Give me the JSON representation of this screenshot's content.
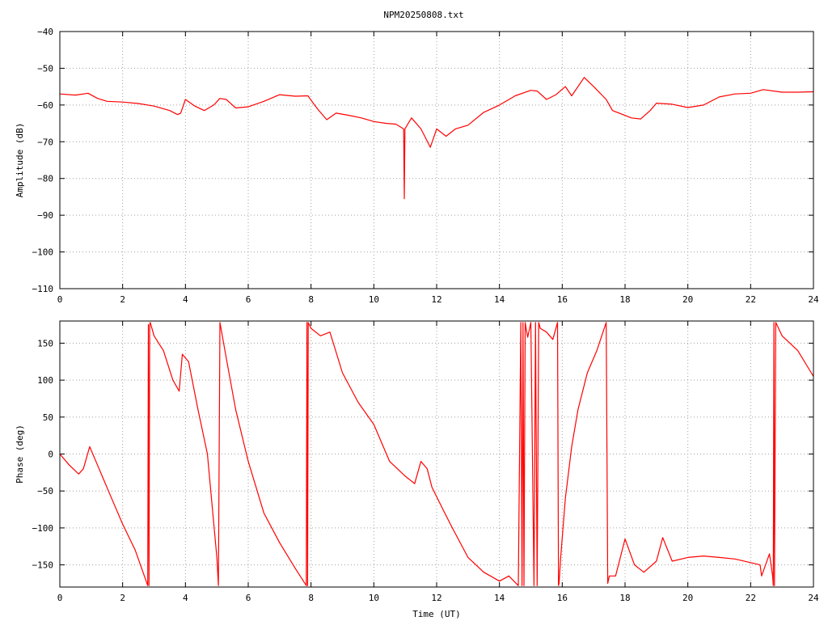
{
  "title": "NPM20250808.txt",
  "colors": {
    "series": "#ff0000",
    "grid": "#a0a0a0",
    "axes": "#000000",
    "background": "#ffffff"
  },
  "chart_data": [
    {
      "type": "line",
      "title": "NPM20250808.txt",
      "xlabel": "",
      "ylabel": "Amplitude (dB)",
      "xlim": [
        0,
        24
      ],
      "ylim": [
        -110,
        -40
      ],
      "xticks": [
        0,
        2,
        4,
        6,
        8,
        10,
        12,
        14,
        16,
        18,
        20,
        22,
        24
      ],
      "xtick_labels": [
        "0",
        "2",
        "4",
        "6",
        "8",
        "10",
        "12",
        "14",
        "16",
        "18",
        "20",
        "22",
        "24"
      ],
      "yticks": [
        -40,
        -50,
        -60,
        -70,
        -80,
        -90,
        -100,
        -110
      ],
      "ytick_labels": [
        "−40",
        "−50",
        "−60",
        "−70",
        "−80",
        "−90",
        "−100",
        "−110"
      ],
      "grid": true,
      "series": [
        {
          "color": "#ff0000",
          "x": [
            0,
            0.5,
            0.9,
            1.2,
            1.5,
            2.0,
            2.5,
            3.0,
            3.5,
            3.75,
            3.85,
            4.0,
            4.3,
            4.6,
            4.9,
            5.1,
            5.3,
            5.6,
            6.0,
            6.5,
            7.0,
            7.5,
            7.9,
            8.2,
            8.5,
            8.8,
            9.2,
            9.6,
            10.0,
            10.4,
            10.7,
            10.95,
            10.97,
            10.99,
            11.2,
            11.5,
            11.8,
            12.0,
            12.3,
            12.6,
            13.0,
            13.5,
            14.0,
            14.5,
            15.0,
            15.2,
            15.5,
            15.8,
            16.1,
            16.3,
            16.7,
            17.0,
            17.4,
            17.6,
            17.9,
            18.2,
            18.5,
            18.8,
            19.0,
            19.5,
            20.0,
            20.5,
            21.0,
            21.5,
            22.0,
            22.4,
            23.0,
            23.5,
            24.0
          ],
          "y": [
            -57,
            -57.3,
            -56.8,
            -58.2,
            -59,
            -59.2,
            -59.6,
            -60.3,
            -61.5,
            -62.6,
            -62.2,
            -58.5,
            -60.3,
            -61.5,
            -60,
            -58.2,
            -58.5,
            -60.8,
            -60.5,
            -59,
            -57.2,
            -57.6,
            -57.5,
            -61,
            -64,
            -62.2,
            -62.8,
            -63.5,
            -64.5,
            -65,
            -65.2,
            -66.5,
            -85.5,
            -66.5,
            -63.5,
            -66.5,
            -71.5,
            -66.5,
            -68.5,
            -66.5,
            -65.5,
            -62,
            -60,
            -57.5,
            -56,
            -56.2,
            -58.5,
            -57.2,
            -55,
            -57.5,
            -52.5,
            -55,
            -58.5,
            -61.5,
            -62.5,
            -63.5,
            -63.8,
            -61.5,
            -59.5,
            -59.8,
            -60.7,
            -60,
            -57.8,
            -57,
            -56.8,
            -55.8,
            -56.5,
            -56.5,
            -56.4
          ]
        }
      ]
    },
    {
      "type": "line",
      "title": "",
      "xlabel": "Time (UT)",
      "ylabel": "Phase (deg)",
      "xlim": [
        0,
        24
      ],
      "ylim": [
        -180,
        180
      ],
      "xticks": [
        0,
        2,
        4,
        6,
        8,
        10,
        12,
        14,
        16,
        18,
        20,
        22,
        24
      ],
      "xtick_labels": [
        "0",
        "2",
        "4",
        "6",
        "8",
        "10",
        "12",
        "14",
        "16",
        "18",
        "20",
        "22",
        "24"
      ],
      "yticks": [
        150,
        100,
        50,
        0,
        -50,
        -100,
        -150
      ],
      "ytick_labels": [
        "150",
        "100",
        "50",
        "0",
        "−50",
        "−100",
        "−150"
      ],
      "grid": true,
      "series": [
        {
          "color": "#ff0000",
          "x": [
            0,
            0.3,
            0.6,
            0.75,
            0.95,
            1.2,
            1.6,
            2.0,
            2.4,
            2.8,
            2.82,
            2.84,
            2.86,
            2.88,
            3.0,
            3.3,
            3.6,
            3.8,
            3.9,
            4.1,
            4.4,
            4.7,
            5.0,
            5.05,
            5.1,
            5.3,
            5.6,
            6.0,
            6.5,
            7.0,
            7.5,
            7.85,
            7.87,
            7.89,
            7.91,
            8.0,
            8.3,
            8.6,
            9.0,
            9.5,
            10.0,
            10.5,
            11.0,
            11.3,
            11.5,
            11.7,
            11.85,
            12.2,
            12.5,
            13.0,
            13.5,
            14.0,
            14.3,
            14.6,
            14.68,
            14.72,
            14.75,
            14.78,
            14.82,
            14.85,
            14.9,
            15.0,
            15.1,
            15.15,
            15.2,
            15.25,
            15.3,
            15.5,
            15.7,
            15.85,
            15.88,
            15.9,
            15.95,
            16.1,
            16.3,
            16.5,
            16.8,
            17.1,
            17.4,
            17.45,
            17.5,
            17.7,
            18.0,
            18.3,
            18.6,
            19.0,
            19.2,
            19.5,
            20.0,
            20.5,
            21.0,
            21.5,
            22.0,
            22.3,
            22.35,
            22.6,
            22.7,
            22.72,
            22.74,
            22.76,
            22.8,
            23.0,
            23.5,
            24.0
          ],
          "y": [
            0,
            -15,
            -27,
            -20,
            10,
            -15,
            -55,
            -95,
            -130,
            -178,
            175,
            -178,
            175,
            178,
            160,
            140,
            100,
            85,
            135,
            125,
            60,
            0,
            -140,
            -178,
            178,
            130,
            60,
            -10,
            -80,
            -120,
            -155,
            -178,
            178,
            -178,
            178,
            170,
            160,
            165,
            110,
            70,
            40,
            -10,
            -30,
            -40,
            -10,
            -20,
            -45,
            -75,
            -100,
            -140,
            -160,
            -172,
            -165,
            -178,
            178,
            -178,
            178,
            -178,
            178,
            170,
            158,
            178,
            -178,
            178,
            -178,
            178,
            170,
            165,
            155,
            178,
            -178,
            -175,
            -140,
            -60,
            10,
            60,
            110,
            140,
            178,
            -175,
            -165,
            -165,
            -115,
            -150,
            -160,
            -145,
            -113,
            -145,
            -140,
            -138,
            -140,
            -142,
            -147,
            -150,
            -165,
            -135,
            -165,
            -178,
            178,
            -178,
            178,
            160,
            140,
            105
          ]
        }
      ]
    }
  ]
}
